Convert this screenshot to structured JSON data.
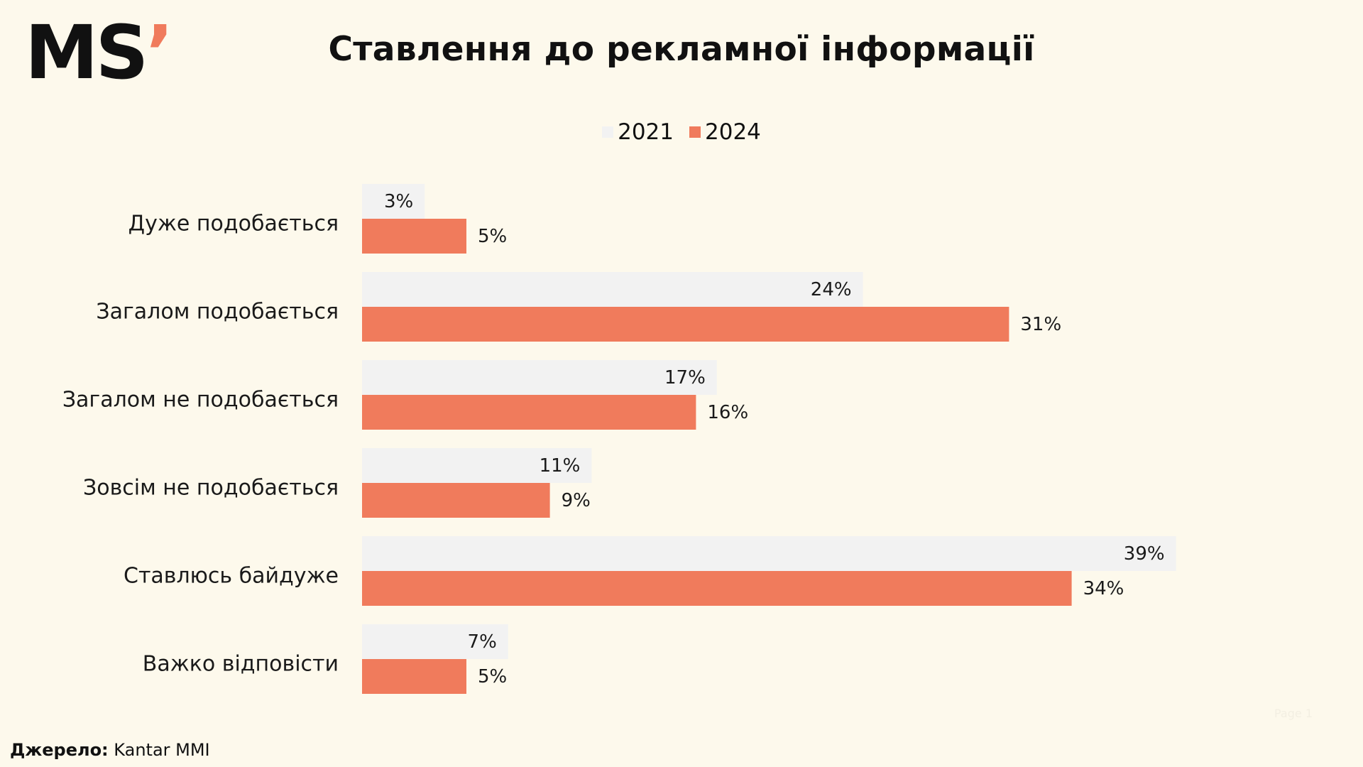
{
  "logo": {
    "main": "MS",
    "accent": "’"
  },
  "title": "Ставлення до рекламної інформації",
  "colors": {
    "background": "#fdf9ec",
    "series_2021": "#f2f2f2",
    "series_2024": "#f07b5c",
    "logo_accent": "#f07b5c"
  },
  "source": {
    "label": "Джерело:",
    "value": "Kantar MMI"
  },
  "page_mark": "Page 1",
  "chart_data": {
    "type": "bar",
    "orientation": "horizontal",
    "categories": [
      "Дуже подобається",
      "Загалом подобається",
      "Загалом не подобається",
      "Зовсім не подобається",
      "Ставлюсь байдуже",
      "Важко відповісти"
    ],
    "series": [
      {
        "name": "2021",
        "values": [
          3,
          24,
          17,
          11,
          39,
          7
        ],
        "labels": [
          "3%",
          "24%",
          "17%",
          "11%",
          "39%",
          "7%"
        ],
        "color": "#f2f2f2",
        "label_position": "inside-end"
      },
      {
        "name": "2024",
        "values": [
          5,
          31,
          16,
          9,
          34,
          5
        ],
        "labels": [
          "5%",
          "31%",
          "16%",
          "9%",
          "34%",
          "5%"
        ],
        "color": "#f07b5c",
        "label_position": "outside-end"
      }
    ],
    "xlim": [
      0,
      40
    ],
    "unit": "%",
    "legend": "top-center",
    "grid": false
  }
}
